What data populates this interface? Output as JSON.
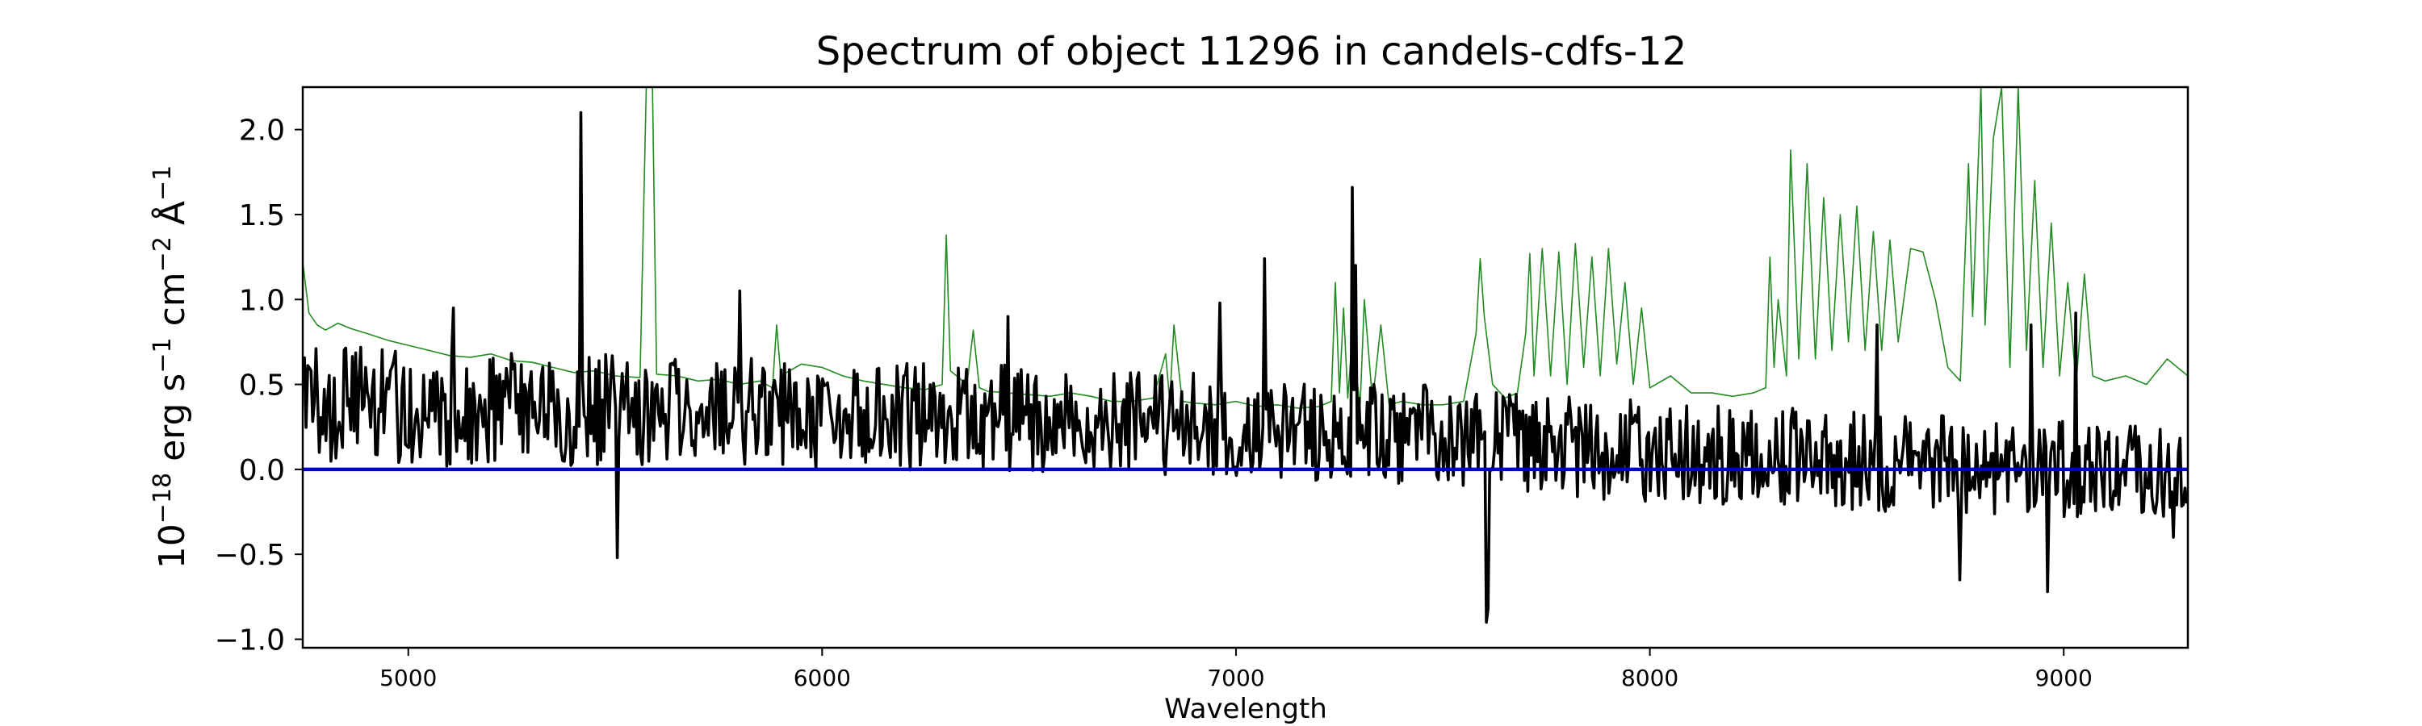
{
  "chart_data": {
    "type": "line",
    "title": "Spectrum of object 11296 in candels-cdfs-12",
    "xlabel": "Wavelength",
    "ylabel_prefix": "10",
    "ylabel_exp": "−18",
    "ylabel_rest": " erg s",
    "ylabel_exp2": "−1",
    "ylabel_mid": " cm",
    "ylabel_exp3": "−2",
    "ylabel_unit": " Å",
    "ylabel_exp4": "−1",
    "xlim": [
      4745,
      9300
    ],
    "ylim": [
      -1.05,
      2.25
    ],
    "xticks": [
      5000,
      6000,
      7000,
      8000,
      9000
    ],
    "xtick_labels": [
      "5000",
      "6000",
      "7000",
      "8000",
      "9000"
    ],
    "yticks": [
      -1.0,
      -0.5,
      0.0,
      0.5,
      1.0,
      1.5,
      2.0
    ],
    "ytick_labels": [
      "−1.0",
      "−0.5",
      "0.0",
      "0.5",
      "1.0",
      "1.5",
      "2.0"
    ],
    "grid": false,
    "series": [
      {
        "color": "#228B22",
        "style": "thin",
        "points": [
          [
            4745,
            1.22
          ],
          [
            4760,
            0.92
          ],
          [
            4780,
            0.85
          ],
          [
            4800,
            0.82
          ],
          [
            4830,
            0.86
          ],
          [
            4860,
            0.83
          ],
          [
            4900,
            0.8
          ],
          [
            4950,
            0.76
          ],
          [
            5000,
            0.73
          ],
          [
            5050,
            0.7
          ],
          [
            5100,
            0.67
          ],
          [
            5150,
            0.66
          ],
          [
            5200,
            0.68
          ],
          [
            5250,
            0.64
          ],
          [
            5300,
            0.63
          ],
          [
            5350,
            0.6
          ],
          [
            5400,
            0.57
          ],
          [
            5450,
            0.58
          ],
          [
            5500,
            0.55
          ],
          [
            5560,
            0.54
          ],
          [
            5575,
            2.25
          ],
          [
            5590,
            2.25
          ],
          [
            5600,
            0.56
          ],
          [
            5650,
            0.55
          ],
          [
            5700,
            0.52
          ],
          [
            5750,
            0.53
          ],
          [
            5800,
            0.5
          ],
          [
            5850,
            0.52
          ],
          [
            5880,
            0.48
          ],
          [
            5890,
            0.85
          ],
          [
            5900,
            0.55
          ],
          [
            5950,
            0.62
          ],
          [
            6000,
            0.6
          ],
          [
            6050,
            0.55
          ],
          [
            6100,
            0.52
          ],
          [
            6150,
            0.5
          ],
          [
            6200,
            0.48
          ],
          [
            6250,
            0.47
          ],
          [
            6290,
            0.5
          ],
          [
            6300,
            1.38
          ],
          [
            6310,
            0.58
          ],
          [
            6350,
            0.5
          ],
          [
            6365,
            0.82
          ],
          [
            6380,
            0.48
          ],
          [
            6400,
            0.46
          ],
          [
            6450,
            0.45
          ],
          [
            6500,
            0.44
          ],
          [
            6550,
            0.43
          ],
          [
            6600,
            0.45
          ],
          [
            6650,
            0.43
          ],
          [
            6700,
            0.4
          ],
          [
            6750,
            0.4
          ],
          [
            6800,
            0.42
          ],
          [
            6830,
            0.68
          ],
          [
            6840,
            0.4
          ],
          [
            6850,
            0.85
          ],
          [
            6870,
            0.4
          ],
          [
            6900,
            0.39
          ],
          [
            6950,
            0.38
          ],
          [
            7000,
            0.4
          ],
          [
            7050,
            0.37
          ],
          [
            7100,
            0.38
          ],
          [
            7150,
            0.36
          ],
          [
            7200,
            0.37
          ],
          [
            7230,
            0.4
          ],
          [
            7240,
            1.1
          ],
          [
            7250,
            0.45
          ],
          [
            7260,
            0.95
          ],
          [
            7270,
            0.42
          ],
          [
            7280,
            0.75
          ],
          [
            7300,
            0.38
          ],
          [
            7310,
            1.0
          ],
          [
            7330,
            0.4
          ],
          [
            7350,
            0.85
          ],
          [
            7370,
            0.38
          ],
          [
            7400,
            0.4
          ],
          [
            7450,
            0.38
          ],
          [
            7500,
            0.38
          ],
          [
            7550,
            0.4
          ],
          [
            7580,
            0.8
          ],
          [
            7590,
            1.24
          ],
          [
            7600,
            0.9
          ],
          [
            7620,
            0.5
          ],
          [
            7650,
            0.42
          ],
          [
            7680,
            0.45
          ],
          [
            7700,
            0.8
          ],
          [
            7710,
            1.27
          ],
          [
            7720,
            0.55
          ],
          [
            7740,
            1.3
          ],
          [
            7760,
            0.55
          ],
          [
            7780,
            1.28
          ],
          [
            7800,
            0.5
          ],
          [
            7820,
            1.33
          ],
          [
            7840,
            0.6
          ],
          [
            7860,
            1.25
          ],
          [
            7880,
            0.55
          ],
          [
            7900,
            1.3
          ],
          [
            7920,
            0.62
          ],
          [
            7940,
            1.1
          ],
          [
            7960,
            0.5
          ],
          [
            7980,
            0.95
          ],
          [
            8000,
            0.48
          ],
          [
            8050,
            0.55
          ],
          [
            8100,
            0.45
          ],
          [
            8150,
            0.45
          ],
          [
            8200,
            0.43
          ],
          [
            8250,
            0.45
          ],
          [
            8280,
            0.48
          ],
          [
            8290,
            1.25
          ],
          [
            8300,
            0.6
          ],
          [
            8310,
            1.0
          ],
          [
            8330,
            0.55
          ],
          [
            8340,
            1.88
          ],
          [
            8360,
            0.65
          ],
          [
            8380,
            1.8
          ],
          [
            8400,
            0.65
          ],
          [
            8420,
            1.6
          ],
          [
            8440,
            0.7
          ],
          [
            8460,
            1.5
          ],
          [
            8480,
            0.75
          ],
          [
            8500,
            1.55
          ],
          [
            8520,
            0.7
          ],
          [
            8540,
            1.4
          ],
          [
            8560,
            0.7
          ],
          [
            8580,
            1.35
          ],
          [
            8600,
            0.75
          ],
          [
            8630,
            1.3
          ],
          [
            8660,
            1.28
          ],
          [
            8690,
            1.0
          ],
          [
            8720,
            0.6
          ],
          [
            8750,
            0.52
          ],
          [
            8770,
            1.8
          ],
          [
            8780,
            0.9
          ],
          [
            8800,
            2.25
          ],
          [
            8810,
            0.85
          ],
          [
            8830,
            1.95
          ],
          [
            8850,
            2.25
          ],
          [
            8870,
            0.6
          ],
          [
            8890,
            2.25
          ],
          [
            8910,
            0.7
          ],
          [
            8930,
            1.7
          ],
          [
            8950,
            0.6
          ],
          [
            8970,
            1.45
          ],
          [
            8990,
            0.55
          ],
          [
            9010,
            1.1
          ],
          [
            9030,
            0.5
          ],
          [
            9050,
            1.15
          ],
          [
            9070,
            0.55
          ],
          [
            9100,
            0.52
          ],
          [
            9150,
            0.55
          ],
          [
            9200,
            0.5
          ],
          [
            9250,
            0.65
          ],
          [
            9300,
            0.55
          ]
        ]
      },
      {
        "color": "#000000",
        "style": "noisy",
        "seed": 11296,
        "x_start": 4745,
        "x_end": 9300,
        "step": 4,
        "base": [
          [
            4745,
            0.4
          ],
          [
            5000,
            0.35
          ],
          [
            5500,
            0.35
          ],
          [
            6000,
            0.32
          ],
          [
            6500,
            0.3
          ],
          [
            7000,
            0.25
          ],
          [
            7500,
            0.2
          ],
          [
            8000,
            0.1
          ],
          [
            8500,
            0.05
          ],
          [
            9000,
            0.0
          ],
          [
            9300,
            0.0
          ]
        ],
        "amplitude": [
          [
            4745,
            0.35
          ],
          [
            6000,
            0.32
          ],
          [
            7500,
            0.3
          ],
          [
            8000,
            0.3
          ],
          [
            9300,
            0.28
          ]
        ],
        "peaks": [
          [
            5418,
            2.1
          ],
          [
            5505,
            -0.52
          ],
          [
            5110,
            0.95
          ],
          [
            5800,
            1.05
          ],
          [
            6450,
            0.9
          ],
          [
            7070,
            1.24
          ],
          [
            6960,
            0.98
          ],
          [
            7280,
            1.66
          ],
          [
            7290,
            1.2
          ],
          [
            7605,
            -0.9
          ],
          [
            7610,
            -0.82
          ],
          [
            8550,
            0.85
          ],
          [
            8750,
            -0.65
          ],
          [
            8920,
            0.85
          ],
          [
            8960,
            -0.72
          ],
          [
            9030,
            0.92
          ],
          [
            9265,
            -0.4
          ]
        ]
      },
      {
        "color": "#0000CD",
        "style": "flat",
        "points": [
          [
            4745,
            0.0
          ],
          [
            9300,
            0.0
          ]
        ]
      }
    ]
  }
}
